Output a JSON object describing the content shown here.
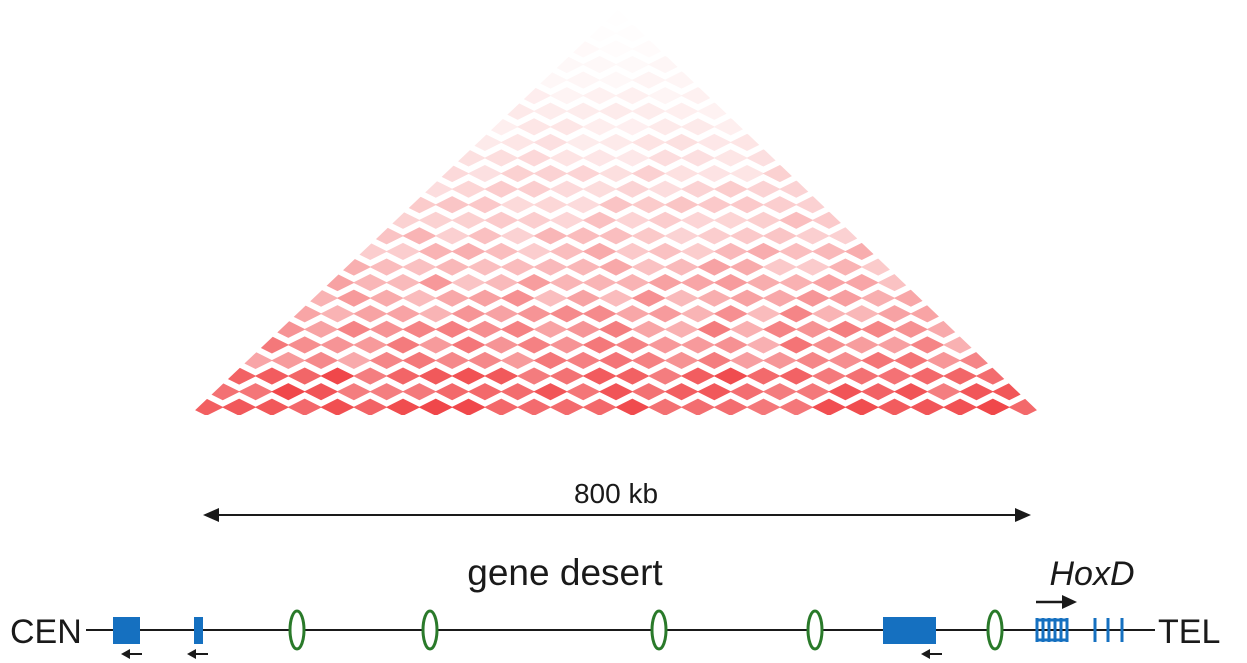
{
  "scale_bar": {
    "label": "800 kb"
  },
  "region_label": "gene desert",
  "locus": {
    "left_end": "CEN",
    "right_end": "TEL",
    "cluster_label": "HoxD"
  },
  "colors": {
    "heatmap_max": "#ef3b3e",
    "heatmap_min": "#ffffff",
    "gene": "#1570c0",
    "enhancer": "#2a7a2a",
    "line": "#1a1a1a"
  },
  "icons": {
    "gene_box": "blue-rectangle",
    "enhancer_marker": "green-ellipse",
    "direction_arrow": "arrow"
  }
}
